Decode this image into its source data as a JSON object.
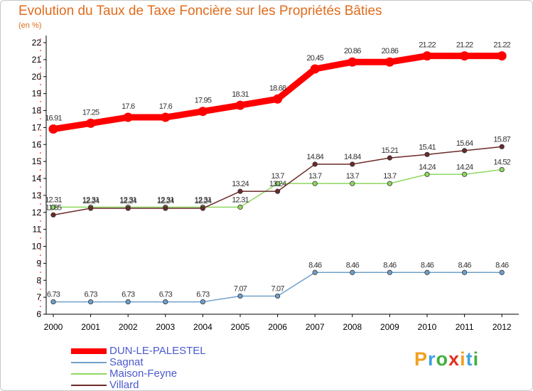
{
  "header": {
    "title": "Evolution du Taux de Taxe Foncière sur les Propriétés Bâties",
    "unit": "(en %)"
  },
  "chart_data": {
    "type": "line",
    "x": [
      "2000",
      "2001",
      "2002",
      "2003",
      "2004",
      "2005",
      "2006",
      "2007",
      "2008",
      "2009",
      "2010",
      "2011",
      "2012"
    ],
    "ylim": [
      6,
      22
    ],
    "yticks": [
      6,
      7,
      8,
      9,
      10,
      11,
      12,
      13,
      14,
      15,
      16,
      17,
      18,
      19,
      20,
      21,
      22
    ],
    "grid": false,
    "legend_position": "bottom-left",
    "series": [
      {
        "name": "DUN-LE-PALESTEL",
        "color": "#ff0000",
        "labels": [
          "16.91",
          "17.25",
          "17.6",
          "17.6",
          "17.95",
          "18.31",
          "18.68",
          "20.45",
          "20.86",
          "20.86",
          "21.22",
          "21.22",
          "21.22"
        ],
        "values": [
          16.91,
          17.25,
          17.6,
          17.6,
          17.95,
          18.31,
          18.68,
          20.45,
          20.86,
          20.86,
          21.22,
          21.22,
          21.22
        ]
      },
      {
        "name": "Sagnat",
        "color": "#6fa0cc",
        "labels": [
          "6.73",
          "6.73",
          "6.73",
          "6.73",
          "6.73",
          "7.07",
          "7.07",
          "8.46",
          "8.46",
          "8.46",
          "8.46",
          "8.46",
          "8.46"
        ],
        "values": [
          6.73,
          6.73,
          6.73,
          6.73,
          6.73,
          7.07,
          7.07,
          8.46,
          8.46,
          8.46,
          8.46,
          8.46,
          8.46
        ]
      },
      {
        "name": "Maison-Feyne",
        "color": "#8fd860",
        "labels": [
          "12.31",
          "12.31",
          "12.31",
          "12.31",
          "12.31",
          "12.31",
          "13.7",
          "13.7",
          "13.7",
          "13.7",
          "14.24",
          "14.24",
          "14.52"
        ],
        "values": [
          12.31,
          12.31,
          12.31,
          12.31,
          12.31,
          12.31,
          13.7,
          13.7,
          13.7,
          13.7,
          14.24,
          14.24,
          14.52
        ]
      },
      {
        "name": "Villard",
        "color": "#6b2a2a",
        "labels": [
          "11.85",
          "12.24",
          "12.24",
          "12.24",
          "12.24",
          "13.24",
          "13.24",
          "14.84",
          "14.84",
          "15.21",
          "15.41",
          "15.64",
          "15.87"
        ],
        "values": [
          11.85,
          12.24,
          12.24,
          12.24,
          12.24,
          13.24,
          13.24,
          14.84,
          14.84,
          15.21,
          15.41,
          15.64,
          15.87
        ]
      }
    ]
  },
  "legend": {
    "items": [
      "DUN-LE-PALESTEL",
      "Sagnat",
      "Maison-Feyne",
      "Villard"
    ]
  },
  "logo": {
    "text": "Proxiti",
    "letters": [
      "P",
      "r",
      "o",
      "x",
      "i",
      "t",
      "i"
    ],
    "colors": [
      "#f0a020",
      "#40a0e0",
      "#40b040",
      "#e03020",
      "#f0a020",
      "#40a0e0",
      "#40b040"
    ]
  }
}
